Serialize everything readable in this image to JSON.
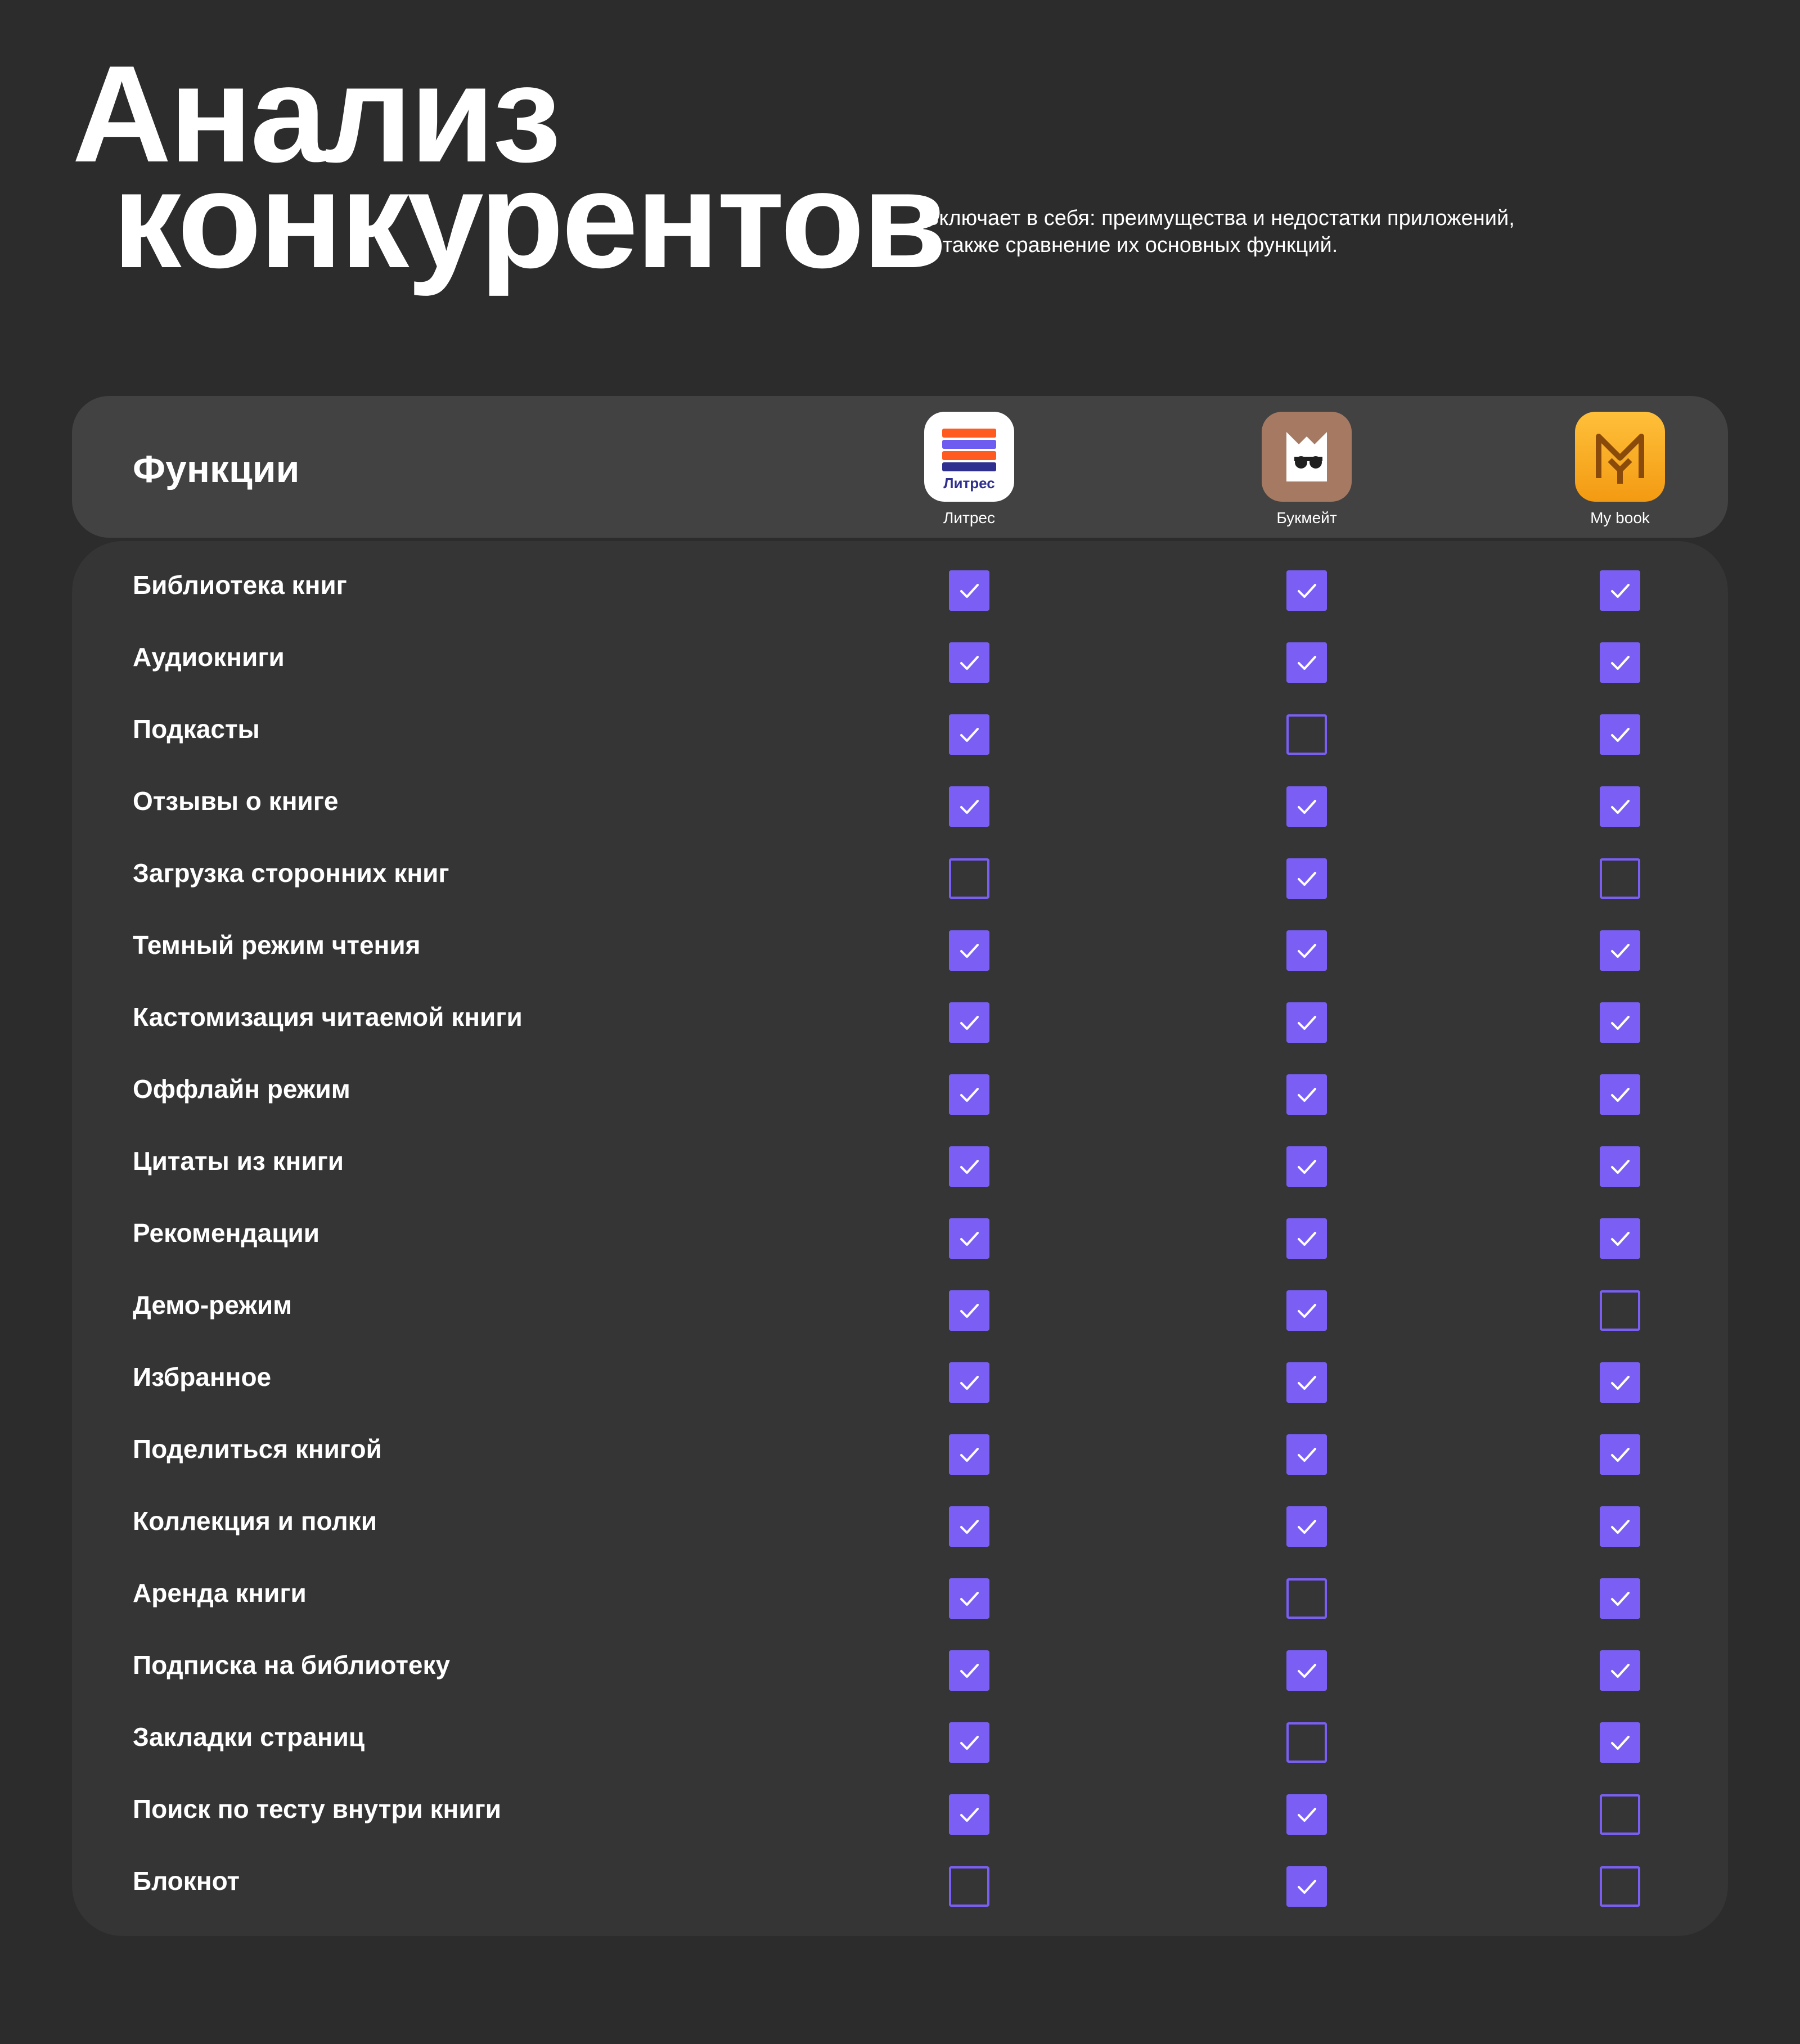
{
  "title": {
    "line1": "Анализ",
    "line2": "конкурентов"
  },
  "subtitle": {
    "line1": "Включает в себя: преимущества и недостатки приложений,",
    "line2": "а также сравнение их основных функций."
  },
  "table": {
    "header_label": "Функции",
    "apps": [
      {
        "name": "Литрес",
        "icon": "litres-logo-icon",
        "color": "#ffffff"
      },
      {
        "name": "Букмейт",
        "icon": "bookmate-logo-icon",
        "color": "#a67a62"
      },
      {
        "name": "My book",
        "icon": "mybook-logo-icon",
        "color": "#f5a623"
      }
    ],
    "rows": [
      {
        "label": "Библиотека книг",
        "checks": [
          true,
          true,
          true
        ]
      },
      {
        "label": "Аудиокниги",
        "checks": [
          true,
          true,
          true
        ]
      },
      {
        "label": "Подкасты",
        "checks": [
          true,
          false,
          true
        ]
      },
      {
        "label": "Отзывы о книге",
        "checks": [
          true,
          true,
          true
        ]
      },
      {
        "label": "Загрузка сторонних книг",
        "checks": [
          false,
          true,
          false
        ]
      },
      {
        "label": "Темный режим чтения",
        "checks": [
          true,
          true,
          true
        ]
      },
      {
        "label": "Кастомизация читаемой книги",
        "checks": [
          true,
          true,
          true
        ]
      },
      {
        "label": "Оффлайн режим",
        "checks": [
          true,
          true,
          true
        ]
      },
      {
        "label": "Цитаты из книги",
        "checks": [
          true,
          true,
          true
        ]
      },
      {
        "label": "Рекомендации",
        "checks": [
          true,
          true,
          true
        ]
      },
      {
        "label": "Демо-режим",
        "checks": [
          true,
          true,
          false
        ]
      },
      {
        "label": "Избранное",
        "checks": [
          true,
          true,
          true
        ]
      },
      {
        "label": "Поделиться книгой",
        "checks": [
          true,
          true,
          true
        ]
      },
      {
        "label": "Коллекция и полки",
        "checks": [
          true,
          true,
          true
        ]
      },
      {
        "label": "Аренда книги",
        "checks": [
          true,
          false,
          true
        ]
      },
      {
        "label": "Подписка на библиотеку",
        "checks": [
          true,
          true,
          true
        ]
      },
      {
        "label": "Закладки страниц",
        "checks": [
          true,
          false,
          true
        ]
      },
      {
        "label": "Поиск по тесту внутри книги",
        "checks": [
          true,
          true,
          false
        ]
      },
      {
        "label": "Блокнот",
        "checks": [
          false,
          true,
          false
        ]
      }
    ]
  },
  "colors": {
    "background": "#2c2c2c",
    "header_card": "#424242",
    "table_card": "#353535",
    "accent": "#7b5ff5"
  }
}
